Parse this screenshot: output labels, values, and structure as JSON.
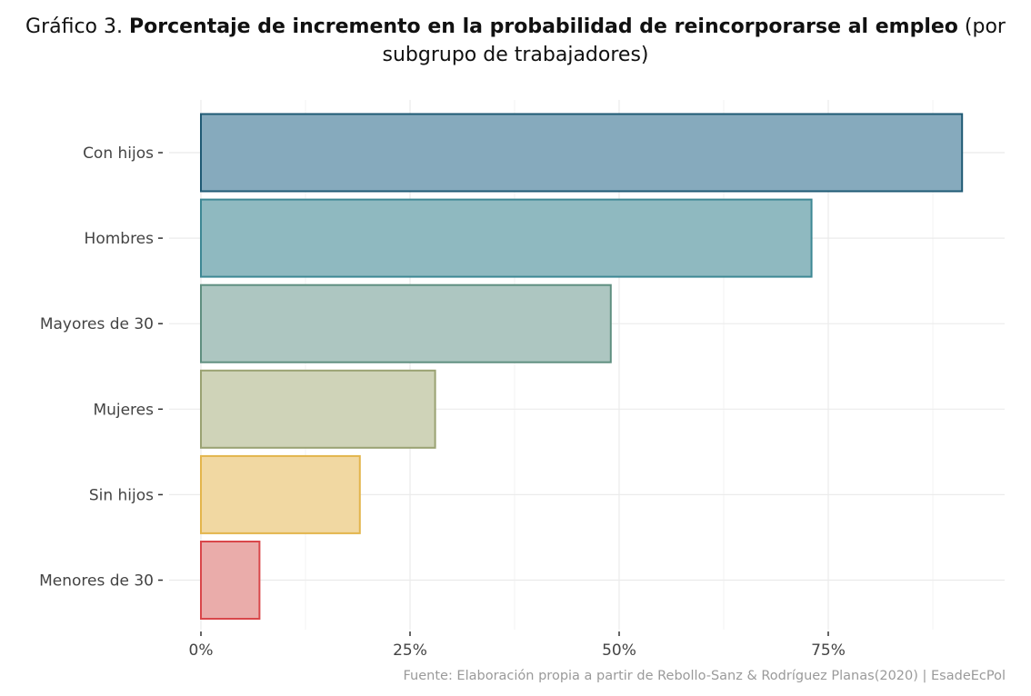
{
  "title": {
    "prefix": "Gráfico 3.",
    "main": "Porcentaje de incremento en la probabilidad de reincorporarse al empleo",
    "suffix_line1": "(por",
    "line2": "subgrupo de trabajadores)"
  },
  "source": "Fuente: Elaboración propia a partir de Rebollo-Sanz & Rodríguez Planas(2020) | EsadeEcPol",
  "chart_data": {
    "type": "bar",
    "orientation": "horizontal",
    "categories": [
      "Con hijos",
      "Hombres",
      "Mayores de 30",
      "Mujeres",
      "Sin hijos",
      "Menores de 30"
    ],
    "values": [
      91,
      73,
      49,
      28,
      19,
      7
    ],
    "x_ticks": [
      0,
      25,
      50,
      75
    ],
    "x_tick_labels": [
      "0%",
      "25%",
      "50%",
      "75%"
    ],
    "xlim": [
      0,
      96
    ],
    "fills": [
      "#86aabd",
      "#8fb9c0",
      "#adc6c1",
      "#cfd3b8",
      "#f1d8a2",
      "#eaacaa"
    ],
    "strokes": [
      "#1f5a74",
      "#3d8894",
      "#5f8f80",
      "#9aa272",
      "#e3b54c",
      "#d9474a"
    ],
    "xlabel": "",
    "ylabel": ""
  }
}
